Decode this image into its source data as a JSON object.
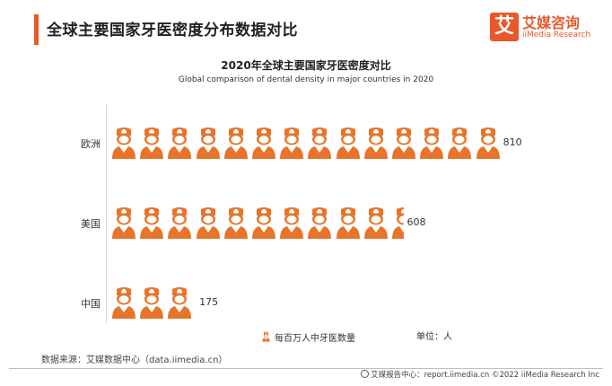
{
  "header": {
    "title": "全球主要国家牙医密度分布数据对比",
    "logo_mark": "艾",
    "logo_cn": "艾媒咨询",
    "logo_en": "iiMedia Research"
  },
  "chart_data": {
    "type": "bar",
    "title": "2020年全球主要国家牙医密度对比",
    "subtitle": "Global comparison of dental density in major countries in 2020",
    "categories": [
      "欧洲",
      "美国",
      "中国"
    ],
    "series": [
      {
        "name": "每百万人中牙医数量",
        "values": [
          810,
          608,
          175
        ]
      }
    ],
    "unit_label": "单位：人",
    "value_per_icon": 58,
    "color": "#e8742c",
    "grid": false,
    "legend_position": "bottom"
  },
  "source": "数据来源：艾媒数据中心（data.iimedia.cn）",
  "footer": "艾媒报告中心：report.iimedia.cn ©2022 iiMedia Research Inc"
}
